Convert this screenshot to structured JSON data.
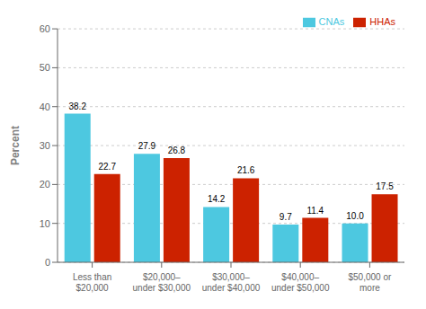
{
  "chart_data": {
    "type": "bar",
    "categories": [
      "Less than\n$20,000",
      "$20,000–\nunder $30,000",
      "$30,000–\nunder $40,000",
      "$40,000–\nunder $50,000",
      "$50,000 or\nmore"
    ],
    "series": [
      {
        "name": "CNAs",
        "color": "#4DC8E0",
        "values": [
          38.2,
          27.9,
          14.2,
          9.7,
          10.0
        ],
        "value_labels": [
          "38.2",
          "27.9",
          "14.2",
          "9.7",
          "10.0"
        ]
      },
      {
        "name": "HHAs",
        "color": "#CC2200",
        "values": [
          22.7,
          26.8,
          21.6,
          11.4,
          17.5
        ],
        "value_labels": [
          "22.7",
          "26.8",
          "21.6",
          "11.4",
          "17.5"
        ]
      }
    ],
    "ylabel": "Percent",
    "ylim": [
      0,
      60
    ],
    "yticks": [
      0,
      10,
      20,
      30,
      40,
      50,
      60
    ],
    "grid": true,
    "legend": "upper right",
    "data_labels": true
  }
}
